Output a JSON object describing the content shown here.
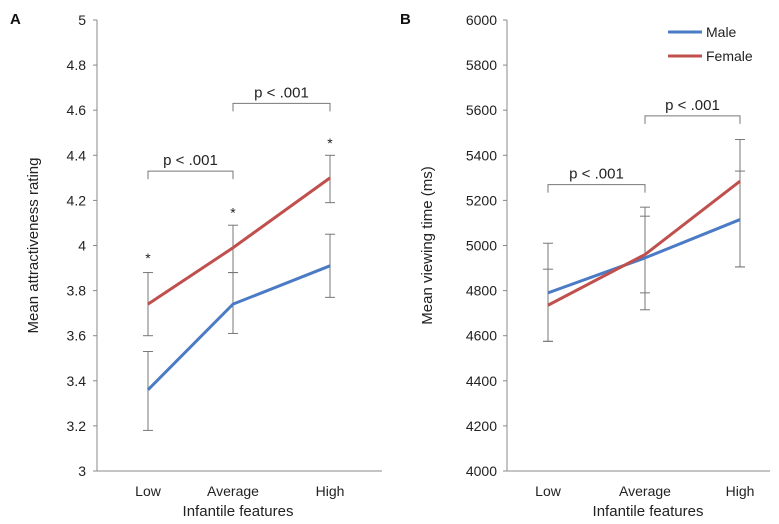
{
  "chart_data": [
    {
      "type": "line",
      "panel_label": "A",
      "categories": [
        "Low",
        "Average",
        "High"
      ],
      "xlabel": "Infantile features",
      "ylabel": "Mean attractiveness rating",
      "ylim": [
        3,
        5
      ],
      "yticks": [
        "3",
        "3.2",
        "3.4",
        "3.6",
        "3.8",
        "4",
        "4.2",
        "4.4",
        "4.6",
        "4.8",
        "5"
      ],
      "series": [
        {
          "name": "Male",
          "color": "#4a7bc4",
          "values": [
            3.36,
            3.74,
            3.91
          ],
          "err_low": [
            3.18,
            3.61,
            3.77
          ],
          "err_high": [
            3.53,
            3.88,
            4.05
          ]
        },
        {
          "name": "Female",
          "color": "#c0504d",
          "values": [
            3.74,
            3.99,
            4.3
          ],
          "err_low": [
            3.6,
            3.88,
            4.19
          ],
          "err_high": [
            3.88,
            4.09,
            4.4
          ]
        }
      ],
      "significance_stars": [
        {
          "category": "Low",
          "y": 3.95,
          "text": "*"
        },
        {
          "category": "Average",
          "y": 4.15,
          "text": "*"
        },
        {
          "category": "High",
          "y": 4.46,
          "text": "*"
        }
      ],
      "brackets": [
        {
          "from": "Low",
          "to": "Average",
          "y": 4.33,
          "text": "p < .001"
        },
        {
          "from": "Average",
          "to": "High",
          "y": 4.63,
          "text": "p < .001"
        }
      ],
      "grid": false
    },
    {
      "type": "line",
      "panel_label": "B",
      "categories": [
        "Low",
        "Average",
        "High"
      ],
      "xlabel": "Infantile features",
      "ylabel": "Mean viewing time (ms)",
      "ylim": [
        4000,
        6000
      ],
      "yticks": [
        "4000",
        "4200",
        "4400",
        "4600",
        "4800",
        "5000",
        "5200",
        "5400",
        "5600",
        "5800",
        "6000"
      ],
      "series": [
        {
          "name": "Male",
          "color": "#4a7bc4",
          "values": [
            4790,
            4945,
            5115
          ],
          "err_low": [
            4575,
            4715,
            4905
          ],
          "err_high": [
            5010,
            5170,
            5330
          ]
        },
        {
          "name": "Female",
          "color": "#c0504d",
          "values": [
            4735,
            4960,
            5285
          ],
          "err_low": [
            4575,
            4790,
            4905
          ],
          "err_high": [
            4895,
            5130,
            5470
          ]
        }
      ],
      "brackets": [
        {
          "from": "Low",
          "to": "Average",
          "y": 5270,
          "text": "p < .001"
        },
        {
          "from": "Average",
          "to": "High",
          "y": 5575,
          "text": "p < .001"
        }
      ],
      "legend": {
        "position": "top-right",
        "entries": [
          "Male",
          "Female"
        ]
      },
      "grid": false
    }
  ]
}
